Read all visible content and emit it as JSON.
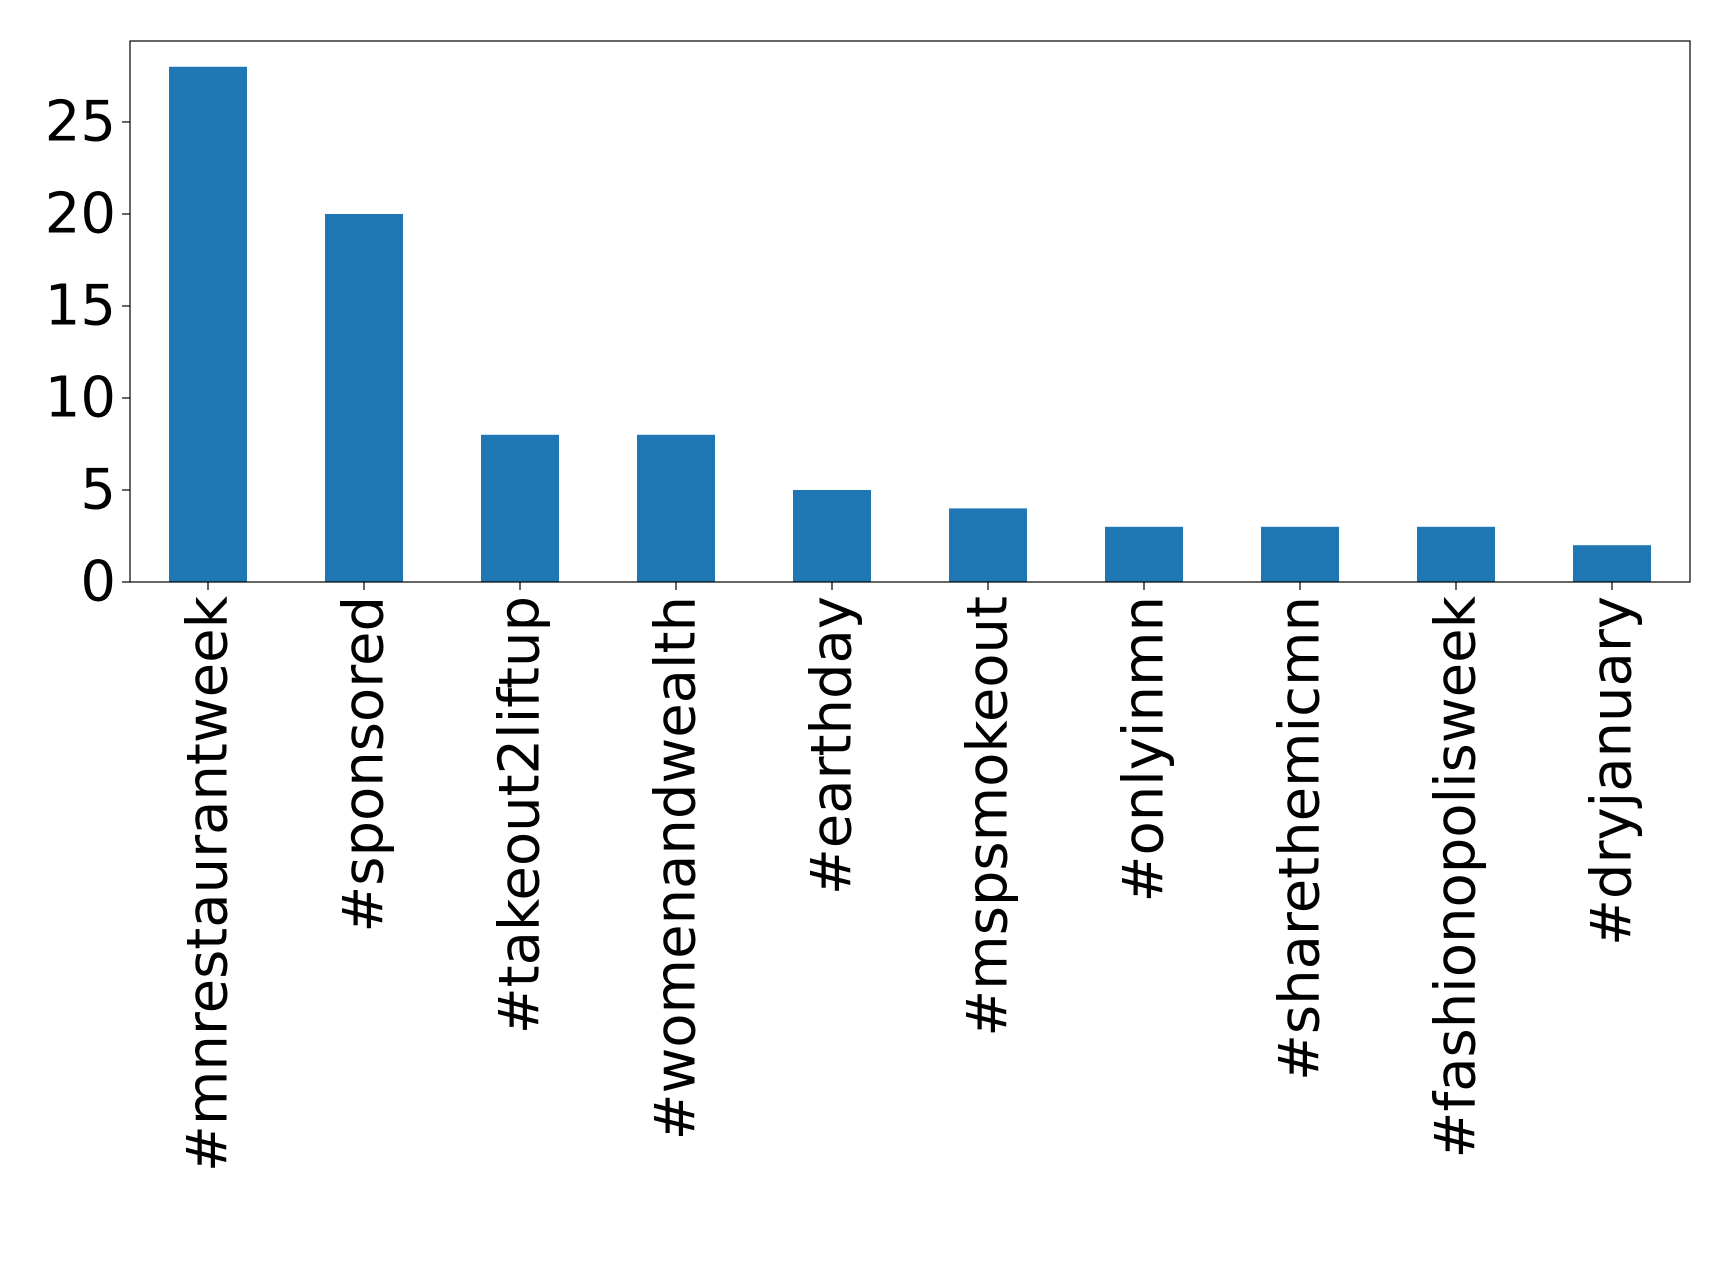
{
  "chart_data": {
    "type": "bar",
    "title": "",
    "xlabel": "",
    "ylabel": "",
    "categories": [
      "#mnrestaurantweek",
      "#sponsored",
      "#takeout2liftup",
      "#womenandwealth",
      "#earthday",
      "#mspsmokeout",
      "#onlyinmn",
      "#sharethemicmn",
      "#fashionopolisweek",
      "#dryjanuary"
    ],
    "values": [
      28,
      20,
      8,
      8,
      5,
      4,
      3,
      3,
      3,
      2
    ],
    "ylim": [
      0,
      29.4
    ],
    "yticks": [
      "0",
      "5",
      "10",
      "15",
      "20",
      "25"
    ],
    "ytick_values": [
      0,
      5,
      10,
      15,
      20,
      25
    ],
    "grid": false,
    "legend": "none",
    "bar_color": "#1f77b4"
  }
}
